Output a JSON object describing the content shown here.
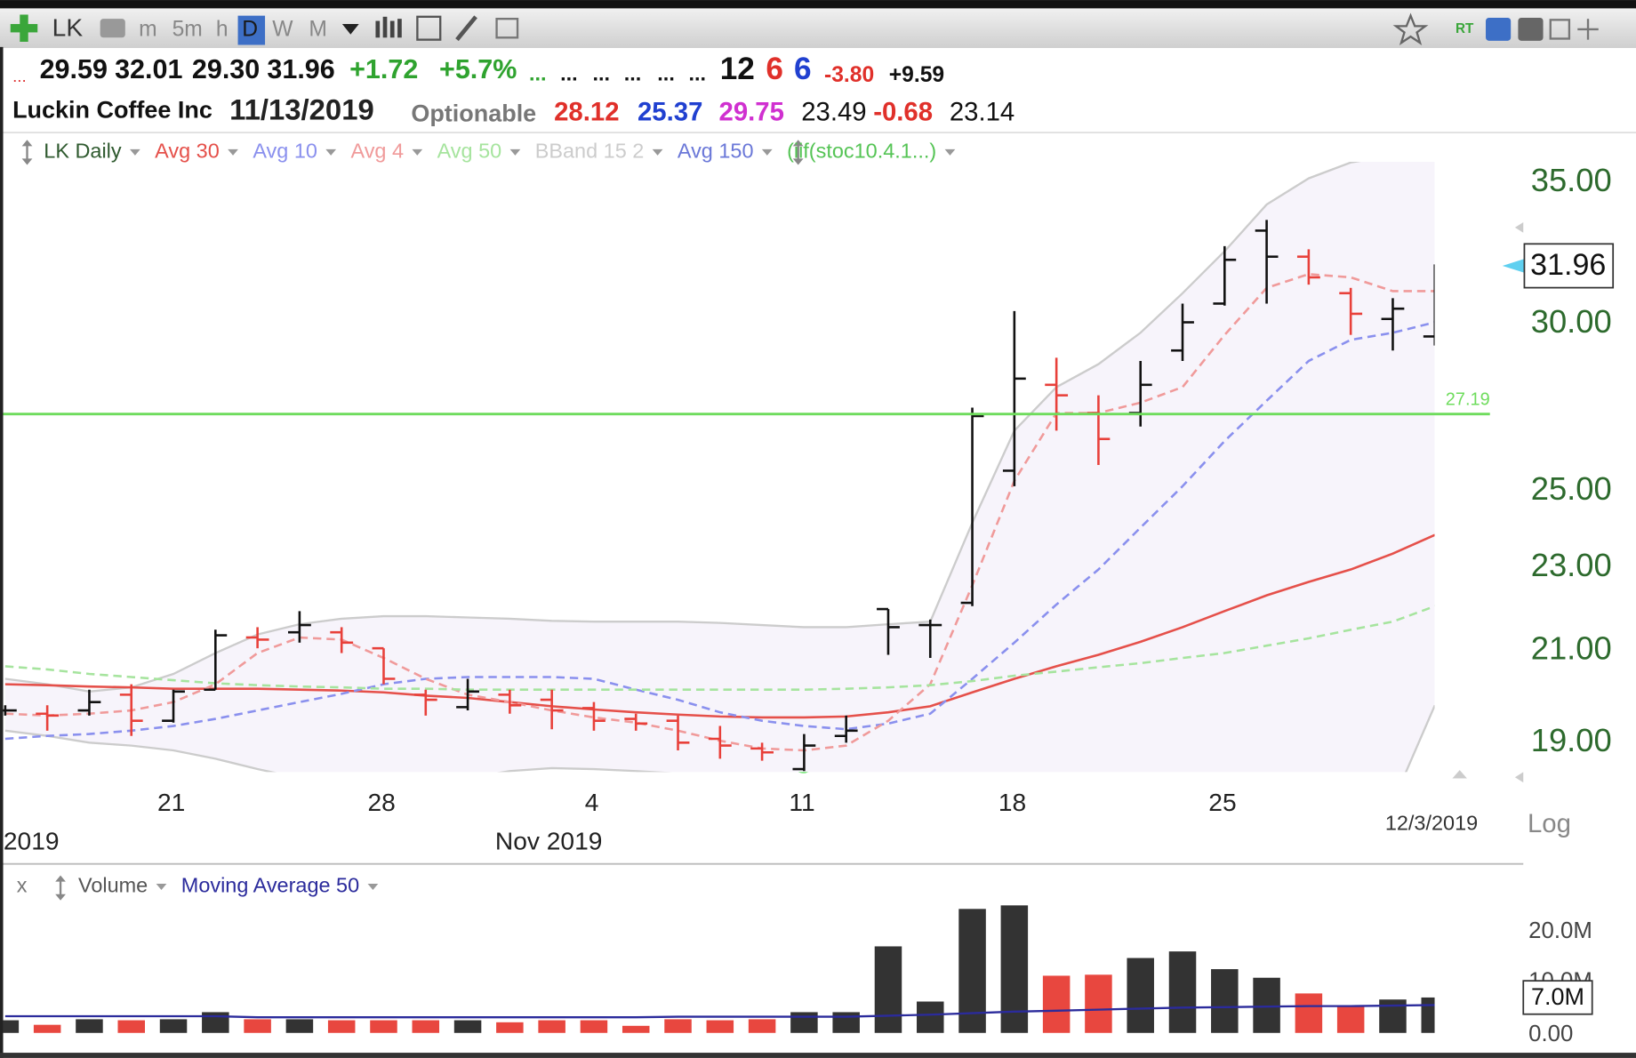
{
  "toolbar": {
    "symbol": "LK",
    "intervals": [
      "m",
      "5m",
      "h",
      "D",
      "W",
      "M"
    ],
    "flags": [
      "RT"
    ]
  },
  "quote": {
    "line1": [
      "...",
      "29.59",
      "32.01",
      "29.30",
      "31.96",
      "+1.72",
      "+5.7%",
      "...",
      "...",
      "...",
      "...",
      "...",
      "...",
      "12",
      "6",
      "6",
      "-3.80",
      "+9.59"
    ],
    "name": "Luckin Coffee Inc",
    "date": "11/13/2019",
    "optionable": "Optionable",
    "line2": [
      "28.12",
      "25.37",
      "29.75",
      "23.49",
      "-0.68",
      "23.14"
    ]
  },
  "ui": {
    "close": "x",
    "log": "Log"
  },
  "chart_data": [
    {
      "type": "ohlc",
      "log": true,
      "ylim": [
        18.4,
        35.8
      ],
      "yticks": [
        {
          "value": 35,
          "label": "35.00"
        },
        {
          "value": 30,
          "label": "30.00"
        },
        {
          "value": 25,
          "label": "25.00"
        },
        {
          "value": 23,
          "label": "23.00"
        },
        {
          "value": 21,
          "label": "21.00"
        },
        {
          "value": 19,
          "label": "19.00"
        }
      ],
      "categories": [
        null,
        null,
        null,
        null,
        "21",
        null,
        null,
        null,
        null,
        "28",
        null,
        null,
        null,
        null,
        "4",
        null,
        null,
        null,
        null,
        "11",
        null,
        null,
        null,
        null,
        "18",
        null,
        null,
        null,
        null,
        "25",
        null,
        null,
        null,
        null,
        null
      ],
      "months": [
        "2019",
        null,
        null,
        null,
        null,
        null,
        null,
        null,
        null,
        null,
        null,
        null,
        null,
        "Nov 2019",
        null,
        null,
        null,
        null,
        null,
        null,
        null,
        null,
        null,
        null,
        null,
        null,
        null,
        null,
        null,
        null,
        null,
        null,
        null,
        null,
        null
      ],
      "last_date": "12/3/2019",
      "reference_line": {
        "value": 27.19,
        "color": "#6edc5c"
      },
      "series": [
        {
          "name": "LK Daily",
          "color": "#2f5a2f",
          "up_color": "#111111",
          "down_color": "#e8403a",
          "open": [
            19.68,
            19.61,
            19.68,
            20.02,
            19.46,
            20.13,
            21.31,
            21.43,
            21.43,
            21.06,
            20.02,
            19.75,
            20.02,
            19.91,
            19.73,
            19.5,
            19.46,
            19.08,
            18.88,
            18.46,
            19.14,
            21.98,
            21.6,
            22.13,
            25.56,
            28.07,
            27.22,
            27.22,
            29.14,
            30.67,
            33.21,
            32.28,
            31.02,
            30.16,
            29.59
          ],
          "high": [
            19.79,
            19.79,
            20.13,
            20.25,
            20.13,
            21.49,
            21.55,
            21.93,
            21.55,
            21.06,
            20.13,
            20.37,
            20.13,
            20.13,
            19.86,
            19.61,
            19.57,
            19.35,
            19.0,
            19.18,
            19.57,
            21.98,
            21.73,
            27.38,
            30.42,
            28.91,
            27.75,
            28.81,
            30.67,
            32.65,
            33.6,
            32.54,
            31.2,
            30.85,
            32.01
          ],
          "low": [
            19.57,
            19.25,
            19.57,
            19.14,
            19.42,
            20.13,
            21.06,
            21.19,
            20.95,
            20.25,
            19.57,
            19.68,
            19.61,
            19.28,
            19.25,
            19.25,
            18.84,
            18.67,
            18.63,
            18.42,
            19.0,
            20.91,
            20.84,
            22.05,
            25.13,
            26.7,
            25.72,
            26.82,
            28.81,
            30.6,
            30.67,
            31.31,
            29.64,
            29.14,
            29.3
          ],
          "close": [
            19.68,
            19.57,
            19.86,
            19.46,
            20.09,
            21.36,
            21.26,
            21.6,
            21.19,
            20.37,
            19.91,
            20.09,
            19.79,
            19.68,
            19.46,
            19.4,
            19.0,
            18.94,
            18.8,
            18.94,
            19.25,
            21.55,
            21.6,
            27.13,
            28.26,
            27.75,
            26.46,
            28.07,
            30.05,
            32.17,
            32.28,
            31.56,
            30.33,
            30.5,
            31.96
          ]
        },
        {
          "name": "Avg 30",
          "color": "#e5504a",
          "dashed": false,
          "values": [
            20.25,
            20.23,
            20.2,
            20.18,
            20.15,
            20.15,
            20.15,
            20.13,
            20.11,
            20.07,
            20.0,
            19.95,
            19.86,
            19.77,
            19.7,
            19.64,
            19.59,
            19.55,
            19.53,
            19.53,
            19.55,
            19.64,
            19.77,
            20.07,
            20.37,
            20.65,
            20.91,
            21.21,
            21.55,
            21.93,
            22.31,
            22.64,
            22.95,
            23.35,
            23.83
          ]
        },
        {
          "name": "Avg 10",
          "color": "#8a90ee",
          "dashed": true,
          "values": [
            19.08,
            19.14,
            19.18,
            19.25,
            19.35,
            19.5,
            19.68,
            19.86,
            20.04,
            20.25,
            20.37,
            20.41,
            20.41,
            20.41,
            20.37,
            20.13,
            19.91,
            19.64,
            19.46,
            19.35,
            19.28,
            19.4,
            19.61,
            20.37,
            21.19,
            22.09,
            22.95,
            24.02,
            25.13,
            26.4,
            27.59,
            28.81,
            29.48,
            29.71,
            30.05
          ]
        },
        {
          "name": "Avg 4",
          "color": "#f09a9a",
          "dashed": true,
          "values": [
            19.61,
            19.57,
            19.61,
            19.68,
            19.86,
            20.25,
            20.95,
            21.31,
            21.26,
            20.84,
            20.37,
            20.02,
            19.86,
            19.68,
            19.53,
            19.42,
            19.25,
            19.04,
            18.88,
            18.84,
            18.94,
            19.46,
            20.25,
            22.56,
            25.28,
            27.22,
            27.22,
            27.53,
            28.0,
            29.64,
            31.2,
            31.67,
            31.56,
            31.09,
            31.09
          ]
        },
        {
          "name": "Avg 50",
          "color": "#a6e49e",
          "dashed": true,
          "values": [
            20.65,
            20.58,
            20.48,
            20.41,
            20.34,
            20.27,
            20.23,
            20.2,
            20.18,
            20.15,
            20.15,
            20.13,
            20.13,
            20.13,
            20.13,
            20.13,
            20.13,
            20.13,
            20.13,
            20.13,
            20.15,
            20.18,
            20.23,
            20.32,
            20.44,
            20.53,
            20.63,
            20.72,
            20.84,
            20.95,
            21.12,
            21.29,
            21.49,
            21.68,
            22.05
          ]
        },
        {
          "name": "BBand 15 2",
          "color": "#cccccc",
          "fill": "#f7f4fb",
          "upper": [
            20.37,
            20.25,
            20.09,
            20.18,
            20.48,
            20.95,
            21.38,
            21.62,
            21.75,
            21.81,
            21.81,
            21.78,
            21.75,
            21.7,
            21.68,
            21.68,
            21.68,
            21.65,
            21.6,
            21.55,
            21.55,
            21.62,
            21.68,
            24.15,
            26.7,
            28.0,
            28.71,
            29.71,
            31.02,
            32.47,
            34.17,
            35.16,
            35.77,
            36.05,
            36.38
          ],
          "lower": [
            19.25,
            19.14,
            19.0,
            18.94,
            18.84,
            18.67,
            18.46,
            18.28,
            18.14,
            18.08,
            18.14,
            18.28,
            18.42,
            18.48,
            18.46,
            18.42,
            18.37,
            18.28,
            18.21,
            18.14,
            17.98,
            17.66,
            17.37,
            17.0,
            16.4,
            16.0,
            15.7,
            15.5,
            15.4,
            15.4,
            15.6,
            16.0,
            16.6,
            17.8,
            19.79
          ]
        }
      ],
      "extra_legend": [
        {
          "name": "Avg 150",
          "color": "#6b78d8"
        },
        {
          "name": "(iif(stoc10.4.1...)",
          "color": "#55c455"
        }
      ]
    },
    {
      "type": "bar",
      "ylim": [
        0,
        26800000
      ],
      "yticks": [
        {
          "value": 0,
          "label": "0.00"
        },
        {
          "value": 10000000,
          "label": "10.0M"
        },
        {
          "value": 20000000,
          "label": "20.0M"
        }
      ],
      "series": [
        {
          "name": "Volume",
          "color": "#555555",
          "up_color": "#333333",
          "down_color": "#e8473f",
          "values": [
            2500000,
            1600000,
            2700000,
            2500000,
            2700000,
            4100000,
            2700000,
            2700000,
            2500000,
            2500000,
            2500000,
            2500000,
            2100000,
            2500000,
            2500000,
            1400000,
            2700000,
            2500000,
            2700000,
            4100000,
            4100000,
            17100000,
            6200000,
            24500000,
            25200000,
            11300000,
            11500000,
            14800000,
            16100000,
            12600000,
            10900000,
            7800000,
            5200000,
            6600000,
            7000000
          ],
          "value_labels": [
            null,
            null,
            null,
            null,
            null,
            null,
            null,
            null,
            null,
            null,
            null,
            null,
            null,
            null,
            null,
            null,
            null,
            null,
            null,
            null,
            null,
            null,
            null,
            null,
            null,
            null,
            null,
            null,
            null,
            null,
            null,
            null,
            null,
            null,
            "7.0M"
          ]
        },
        {
          "name": "Moving Average 50",
          "color": "#2b2b9c",
          "values": [
            3300000,
            3300000,
            3300000,
            3300000,
            3300000,
            3300000,
            3100000,
            3100000,
            3100000,
            3100000,
            3100000,
            3100000,
            3100000,
            3100000,
            3100000,
            3100000,
            3200000,
            3200000,
            3200000,
            3200000,
            3200000,
            3400000,
            3600000,
            3900000,
            4200000,
            4400000,
            4600000,
            4800000,
            5000000,
            5100000,
            5200000,
            5300000,
            5300000,
            5400000,
            5500000
          ]
        }
      ]
    }
  ]
}
